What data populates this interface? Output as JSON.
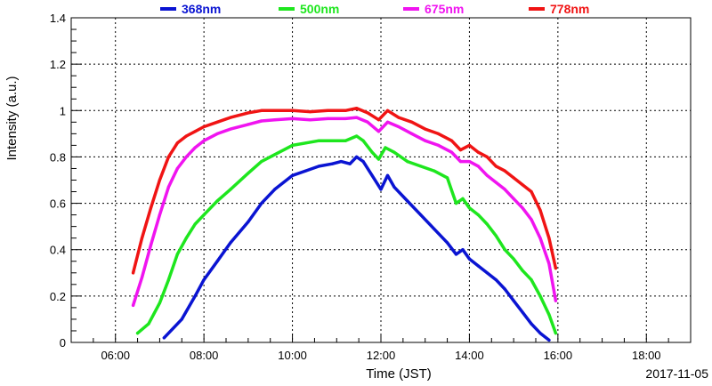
{
  "chart_data": {
    "type": "scatter",
    "title": "",
    "xlabel": "Time (JST)",
    "ylabel": "Intensity (a.u.)",
    "date": "2017-11-05",
    "xlim": [
      5.0,
      19.0
    ],
    "ylim": [
      0,
      1.4
    ],
    "x_ticks": [
      6,
      8,
      10,
      12,
      14,
      16,
      18
    ],
    "x_tick_labels": [
      "06:00",
      "08:00",
      "10:00",
      "12:00",
      "14:00",
      "16:00",
      "18:00"
    ],
    "y_ticks": [
      0,
      0.2,
      0.4,
      0.6,
      0.8,
      1,
      1.2,
      1.4
    ],
    "y_tick_labels": [
      "0",
      "0.2",
      "0.4",
      "0.6",
      "0.8",
      "1",
      "1.2",
      "1.4"
    ],
    "grid": true,
    "legend_position": "top",
    "series": [
      {
        "name": "368nm",
        "color": "#0a14d2",
        "x": [
          7.1,
          7.5,
          7.8,
          8.0,
          8.3,
          8.6,
          9.0,
          9.3,
          9.6,
          10.0,
          10.3,
          10.6,
          10.9,
          11.1,
          11.3,
          11.45,
          11.6,
          11.8,
          12.0,
          12.15,
          12.3,
          12.6,
          12.9,
          13.2,
          13.5,
          13.7,
          13.85,
          14.0,
          14.2,
          14.4,
          14.6,
          14.8,
          15.0,
          15.2,
          15.4,
          15.6,
          15.8
        ],
        "y": [
          0.02,
          0.1,
          0.2,
          0.27,
          0.35,
          0.43,
          0.52,
          0.6,
          0.66,
          0.72,
          0.74,
          0.76,
          0.77,
          0.78,
          0.77,
          0.8,
          0.78,
          0.72,
          0.66,
          0.72,
          0.67,
          0.61,
          0.55,
          0.49,
          0.43,
          0.38,
          0.4,
          0.36,
          0.33,
          0.3,
          0.27,
          0.23,
          0.18,
          0.13,
          0.08,
          0.04,
          0.01
        ]
      },
      {
        "name": "500nm",
        "color": "#1ee61e",
        "x": [
          6.5,
          6.75,
          7.0,
          7.2,
          7.4,
          7.6,
          7.8,
          8.0,
          8.3,
          8.6,
          9.0,
          9.3,
          9.6,
          10.0,
          10.3,
          10.6,
          10.9,
          11.2,
          11.45,
          11.6,
          11.8,
          11.95,
          12.1,
          12.3,
          12.6,
          12.9,
          13.2,
          13.5,
          13.7,
          13.85,
          14.0,
          14.2,
          14.4,
          14.6,
          14.8,
          15.0,
          15.2,
          15.4,
          15.6,
          15.8,
          15.95
        ],
        "y": [
          0.04,
          0.08,
          0.17,
          0.27,
          0.38,
          0.45,
          0.51,
          0.55,
          0.61,
          0.66,
          0.73,
          0.78,
          0.81,
          0.85,
          0.86,
          0.87,
          0.87,
          0.87,
          0.89,
          0.87,
          0.82,
          0.79,
          0.84,
          0.82,
          0.78,
          0.76,
          0.74,
          0.71,
          0.6,
          0.62,
          0.58,
          0.55,
          0.51,
          0.46,
          0.4,
          0.36,
          0.31,
          0.27,
          0.2,
          0.12,
          0.04
        ]
      },
      {
        "name": "675nm",
        "color": "#f014f0",
        "x": [
          6.4,
          6.6,
          6.8,
          7.0,
          7.2,
          7.4,
          7.6,
          7.8,
          8.0,
          8.3,
          8.6,
          9.0,
          9.3,
          9.6,
          10.0,
          10.4,
          10.8,
          11.2,
          11.45,
          11.7,
          11.95,
          12.15,
          12.4,
          12.7,
          13.0,
          13.3,
          13.6,
          13.8,
          14.0,
          14.2,
          14.4,
          14.6,
          14.8,
          15.0,
          15.2,
          15.4,
          15.6,
          15.8,
          15.95
        ],
        "y": [
          0.16,
          0.28,
          0.42,
          0.55,
          0.67,
          0.75,
          0.8,
          0.84,
          0.87,
          0.9,
          0.92,
          0.94,
          0.955,
          0.96,
          0.965,
          0.96,
          0.965,
          0.965,
          0.97,
          0.95,
          0.91,
          0.95,
          0.93,
          0.9,
          0.87,
          0.85,
          0.82,
          0.78,
          0.78,
          0.76,
          0.72,
          0.69,
          0.66,
          0.62,
          0.58,
          0.53,
          0.45,
          0.34,
          0.18
        ]
      },
      {
        "name": "778nm",
        "color": "#f01414",
        "x": [
          6.4,
          6.6,
          6.8,
          7.0,
          7.2,
          7.4,
          7.6,
          7.8,
          8.0,
          8.3,
          8.6,
          9.0,
          9.3,
          9.6,
          10.0,
          10.4,
          10.8,
          11.2,
          11.45,
          11.7,
          11.95,
          12.15,
          12.4,
          12.7,
          13.0,
          13.3,
          13.6,
          13.8,
          14.0,
          14.2,
          14.4,
          14.6,
          14.8,
          15.0,
          15.2,
          15.4,
          15.6,
          15.8,
          15.95
        ],
        "y": [
          0.3,
          0.45,
          0.58,
          0.7,
          0.8,
          0.86,
          0.89,
          0.91,
          0.93,
          0.95,
          0.97,
          0.99,
          1.0,
          1.0,
          1.0,
          0.995,
          1.0,
          1.0,
          1.01,
          0.99,
          0.96,
          1.0,
          0.97,
          0.95,
          0.92,
          0.9,
          0.87,
          0.83,
          0.85,
          0.82,
          0.8,
          0.76,
          0.74,
          0.71,
          0.68,
          0.65,
          0.57,
          0.45,
          0.32
        ]
      }
    ]
  }
}
